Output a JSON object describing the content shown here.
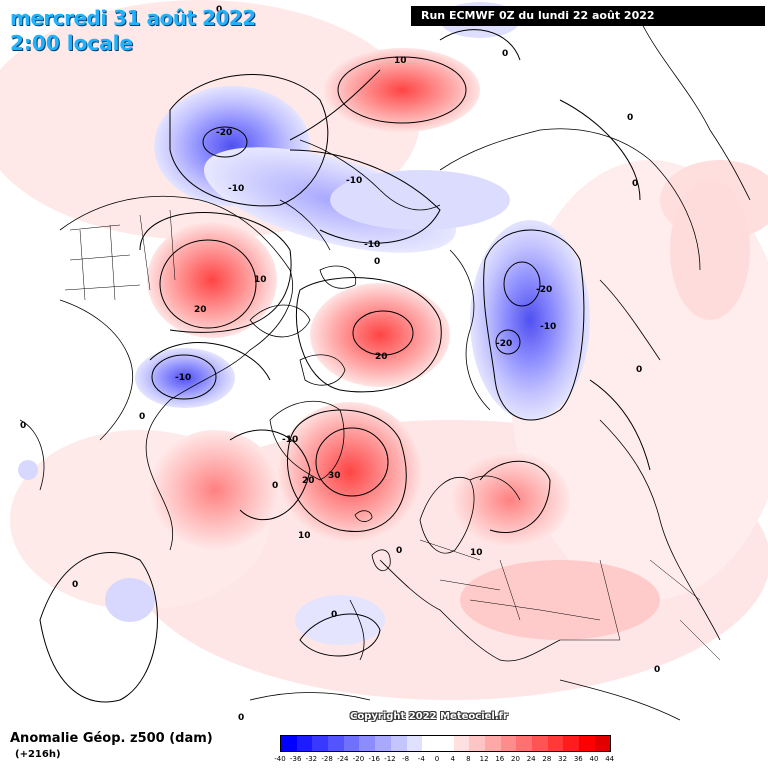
{
  "header": {
    "date_line": "mercredi 31 août 2022",
    "time_line": "2:00 locale",
    "run_info": "Run ECMWF 0Z du lundi 22 août 2022"
  },
  "footer": {
    "variable_title": "Anomalie Géop. z500 (dam)",
    "lead_time": "(+216h)",
    "copyright": "Copyright 2022 Meteociel.fr"
  },
  "legend": {
    "colors": [
      "#0000ff",
      "#1c1cff",
      "#3838ff",
      "#5454ff",
      "#7070ff",
      "#8c8cff",
      "#a8a8ff",
      "#c4c4ff",
      "#e0e0ff",
      "#ffffff",
      "#ffffff",
      "#ffe0e0",
      "#ffc4c4",
      "#ffa8a8",
      "#ff8c8c",
      "#ff7070",
      "#ff5454",
      "#ff3838",
      "#ff1c1c",
      "#ff0000",
      "#e00000"
    ],
    "ticks": [
      "-40",
      "-36",
      "-32",
      "-28",
      "-24",
      "-20",
      "-16",
      "-12",
      "-8",
      "-4",
      "0",
      "4",
      "8",
      "12",
      "16",
      "20",
      "24",
      "28",
      "32",
      "36",
      "40",
      "44"
    ]
  },
  "contour_labels": [
    "0",
    "10",
    "-20",
    "-10",
    "-10",
    "-10",
    "0",
    "10",
    "20",
    "-20",
    "-10",
    "-20",
    "20",
    "0",
    "-10",
    "0",
    "-10",
    "0",
    "30",
    "20",
    "10",
    "0",
    "10",
    "0",
    "0",
    "0",
    "0",
    "0",
    "0",
    "0",
    "0"
  ],
  "anomalies": [
    {
      "name": "north-pacific-ridge",
      "value": "10",
      "sign": "positive"
    },
    {
      "name": "alaska-low",
      "value": "-20",
      "sign": "negative"
    },
    {
      "name": "siberia-low",
      "value": "-20",
      "sign": "negative"
    },
    {
      "name": "canada-ridge",
      "value": "20",
      "sign": "positive"
    },
    {
      "name": "arctic-ridge",
      "value": "20",
      "sign": "positive"
    },
    {
      "name": "greenland-atlantic-ridge",
      "value": "30",
      "sign": "positive"
    },
    {
      "name": "hudson-low",
      "value": "-10",
      "sign": "negative"
    },
    {
      "name": "scandinavia-ridge",
      "value": "10",
      "sign": "positive"
    }
  ],
  "colors": {
    "title": "#1fb2ff",
    "positive": "#ff5454",
    "negative": "#5454ff"
  }
}
